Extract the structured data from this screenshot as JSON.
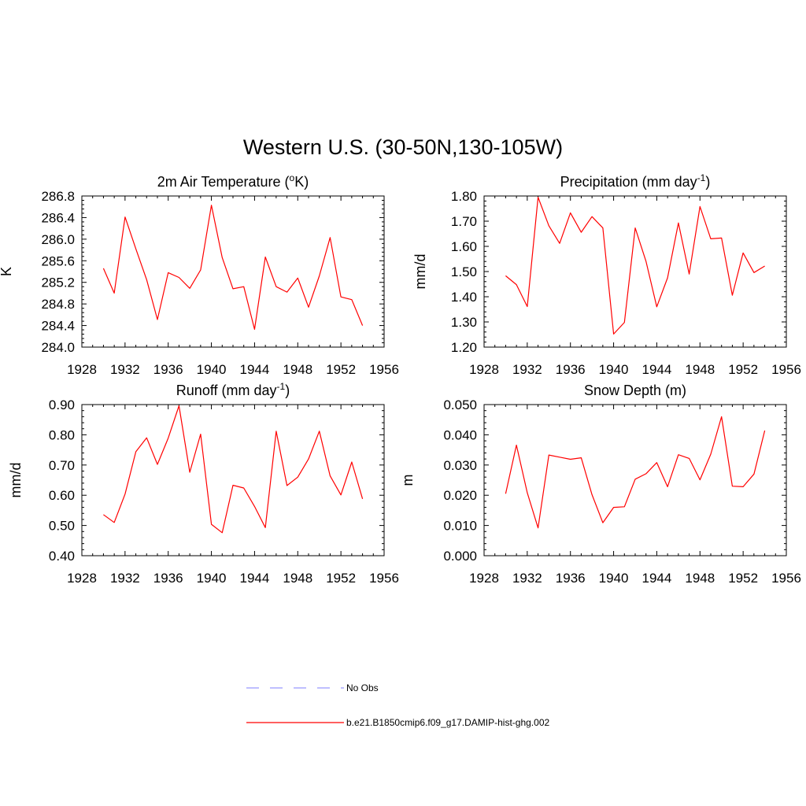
{
  "figure": {
    "title": "Western U.S. (30-50N,130-105W)"
  },
  "legend": {
    "obs_label": "No Obs",
    "obs_color": "#9999ff",
    "model_label": "b.e21.B1850cmip6.f09_g17.DAMIP-hist-ghg.002",
    "model_color": "#ff0000"
  },
  "chart_data": [
    {
      "type": "line",
      "title": "2m Air Temperature (",
      "title_sup": "o",
      "title_after": "K)",
      "ylabel": "K",
      "xlim": [
        1928,
        1956
      ],
      "xticks": [
        1928,
        1932,
        1936,
        1940,
        1944,
        1948,
        1952,
        1956
      ],
      "ylim": [
        284.0,
        286.8
      ],
      "yticks": [
        "284.0",
        "284.4",
        "284.8",
        "285.2",
        "285.6",
        "286.0",
        "286.4",
        "286.8"
      ],
      "series": [
        {
          "color": "#ff0000",
          "x": [
            1930,
            1931,
            1932,
            1933,
            1934,
            1935,
            1936,
            1937,
            1938,
            1939,
            1940,
            1941,
            1942,
            1943,
            1944,
            1945,
            1946,
            1947,
            1948,
            1949,
            1950,
            1951,
            1952,
            1953,
            1954
          ],
          "values": [
            285.46,
            285.0,
            286.41,
            285.82,
            285.25,
            284.51,
            285.38,
            285.29,
            285.09,
            285.43,
            286.63,
            285.66,
            285.08,
            285.12,
            284.33,
            285.67,
            285.12,
            285.02,
            285.28,
            284.74,
            285.32,
            286.03,
            284.93,
            284.88,
            284.4
          ]
        }
      ]
    },
    {
      "type": "line",
      "title": "Precipitation (mm day",
      "title_sup": "-1",
      "title_after": ")",
      "ylabel": "mm/d",
      "xlim": [
        1928,
        1956
      ],
      "xticks": [
        1928,
        1932,
        1936,
        1940,
        1944,
        1948,
        1952,
        1956
      ],
      "ylim": [
        1.2,
        1.8
      ],
      "yticks": [
        "1.20",
        "1.30",
        "1.40",
        "1.50",
        "1.60",
        "1.70",
        "1.80"
      ],
      "series": [
        {
          "color": "#ff0000",
          "x": [
            1930,
            1931,
            1932,
            1933,
            1934,
            1935,
            1936,
            1937,
            1938,
            1939,
            1940,
            1941,
            1942,
            1943,
            1944,
            1945,
            1946,
            1947,
            1948,
            1949,
            1950,
            1951,
            1952,
            1953,
            1954
          ],
          "values": [
            1.483,
            1.448,
            1.361,
            1.795,
            1.682,
            1.612,
            1.733,
            1.656,
            1.718,
            1.673,
            1.252,
            1.298,
            1.673,
            1.541,
            1.36,
            1.475,
            1.693,
            1.49,
            1.758,
            1.63,
            1.633,
            1.406,
            1.574,
            1.496,
            1.522
          ]
        }
      ]
    },
    {
      "type": "line",
      "title": "Runoff (mm day",
      "title_sup": "-1",
      "title_after": ")",
      "ylabel": "mm/d",
      "xlim": [
        1928,
        1956
      ],
      "xticks": [
        1928,
        1932,
        1936,
        1940,
        1944,
        1948,
        1952,
        1956
      ],
      "ylim": [
        0.4,
        0.9
      ],
      "yticks": [
        "0.40",
        "0.50",
        "0.60",
        "0.70",
        "0.80",
        "0.90"
      ],
      "series": [
        {
          "color": "#ff0000",
          "x": [
            1930,
            1931,
            1932,
            1933,
            1934,
            1935,
            1936,
            1937,
            1938,
            1939,
            1940,
            1941,
            1942,
            1943,
            1944,
            1945,
            1946,
            1947,
            1948,
            1949,
            1950,
            1951,
            1952,
            1953,
            1954
          ],
          "values": [
            0.536,
            0.51,
            0.604,
            0.744,
            0.79,
            0.702,
            0.789,
            0.896,
            0.676,
            0.802,
            0.504,
            0.476,
            0.633,
            0.624,
            0.563,
            0.493,
            0.812,
            0.632,
            0.66,
            0.72,
            0.812,
            0.664,
            0.601,
            0.71,
            0.588
          ]
        }
      ]
    },
    {
      "type": "line",
      "title": "Snow Depth (m)",
      "title_sup": "",
      "title_after": "",
      "ylabel": "m",
      "xlim": [
        1928,
        1956
      ],
      "xticks": [
        1928,
        1932,
        1936,
        1940,
        1944,
        1948,
        1952,
        1956
      ],
      "ylim": [
        0.0,
        0.05
      ],
      "yticks": [
        "0.000",
        "0.010",
        "0.020",
        "0.030",
        "0.040",
        "0.050"
      ],
      "series": [
        {
          "color": "#ff0000",
          "x": [
            1930,
            1931,
            1932,
            1933,
            1934,
            1935,
            1936,
            1937,
            1938,
            1939,
            1940,
            1941,
            1942,
            1943,
            1944,
            1945,
            1946,
            1947,
            1948,
            1949,
            1950,
            1951,
            1952,
            1953,
            1954
          ],
          "values": [
            0.0205,
            0.0366,
            0.0208,
            0.0092,
            0.0333,
            0.0326,
            0.0319,
            0.0324,
            0.0202,
            0.0109,
            0.016,
            0.0162,
            0.0253,
            0.0271,
            0.0308,
            0.0228,
            0.0334,
            0.0322,
            0.0251,
            0.0336,
            0.046,
            0.023,
            0.0228,
            0.027,
            0.0414
          ]
        }
      ]
    }
  ]
}
